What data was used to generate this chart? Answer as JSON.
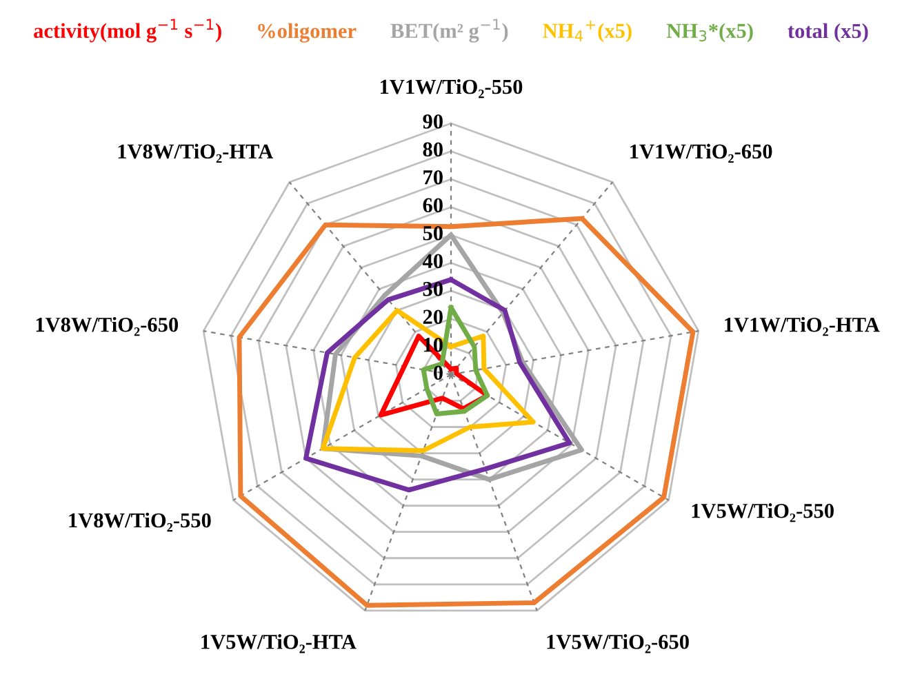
{
  "chart_data": {
    "type": "radar",
    "categories": [
      "1V1W/TiO₂-550",
      "1V1W/TiO₂-650",
      "1V1W/TiO₂-HTA",
      "1V5W/TiO₂-550",
      "1V5W/TiO₂-650",
      "1V5W/TiO₂-HTA",
      "1V8W/TiO₂-550",
      "1V8W/TiO₂-650",
      "1V8W/TiO₂-HTA"
    ],
    "series": [
      {
        "name": "activity(mol g$^{−1}$ s$^{−1}$)",
        "color": "#ff0000",
        "values": [
          2,
          3,
          2,
          15,
          13,
          9,
          29,
          17,
          18
        ]
      },
      {
        "name": "%oligomer",
        "color": "#ed7d31",
        "values": [
          53,
          73,
          88,
          88,
          87,
          88,
          87,
          77,
          70
        ]
      },
      {
        "name": "BET(m² g$^{−1}$)",
        "color": "#a5a5a5",
        "values": [
          50,
          29,
          26,
          54,
          40,
          31,
          53,
          42,
          37
        ]
      },
      {
        "name": "NH$_{4}$$^{+}$(x5)",
        "color": "#ffc000",
        "values": [
          10,
          18,
          12,
          34,
          20,
          29,
          53,
          35,
          30
        ]
      },
      {
        "name": "NH$_{3}$*(x5)",
        "color": "#70ad47",
        "values": [
          24,
          13,
          9,
          15,
          14,
          15,
          10,
          10,
          5
        ]
      },
      {
        "name": "total (x5)",
        "color": "#7030a0",
        "values": [
          34,
          30,
          25,
          49,
          36,
          44,
          60,
          45,
          35
        ]
      }
    ],
    "ylim": [
      0,
      90
    ],
    "yticks": [
      0,
      10,
      20,
      30,
      40,
      50,
      60,
      70,
      80,
      90
    ],
    "grid": true,
    "legend": "top",
    "line_style": "solid",
    "marker": "none"
  }
}
